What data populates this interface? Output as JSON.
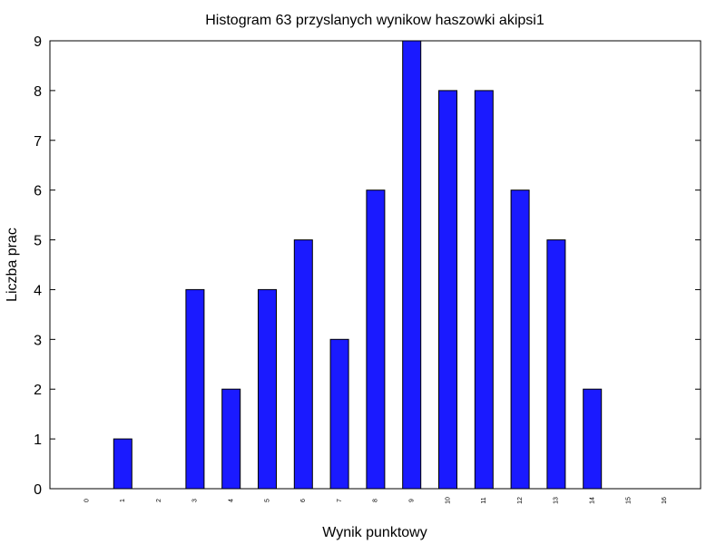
{
  "chart_data": {
    "type": "bar",
    "title": "Histogram 63 przyslanych wynikow haszowki akipsi1",
    "xlabel": "Wynik punktowy",
    "ylabel": "Liczba prac",
    "categories": [
      "0",
      "1",
      "2",
      "3",
      "4",
      "5",
      "6",
      "7",
      "8",
      "9",
      "10",
      "11",
      "12",
      "13",
      "14",
      "15",
      "16"
    ],
    "values": [
      0,
      1,
      0,
      4,
      2,
      4,
      5,
      3,
      6,
      9,
      8,
      8,
      6,
      5,
      2,
      0,
      0
    ],
    "ylim": [
      0,
      9
    ],
    "yticks": [
      "0",
      "1",
      "2",
      "3",
      "4",
      "5",
      "6",
      "7",
      "8",
      "9"
    ],
    "bar_color": "#1a1aff",
    "grid": false,
    "legend": "none"
  }
}
